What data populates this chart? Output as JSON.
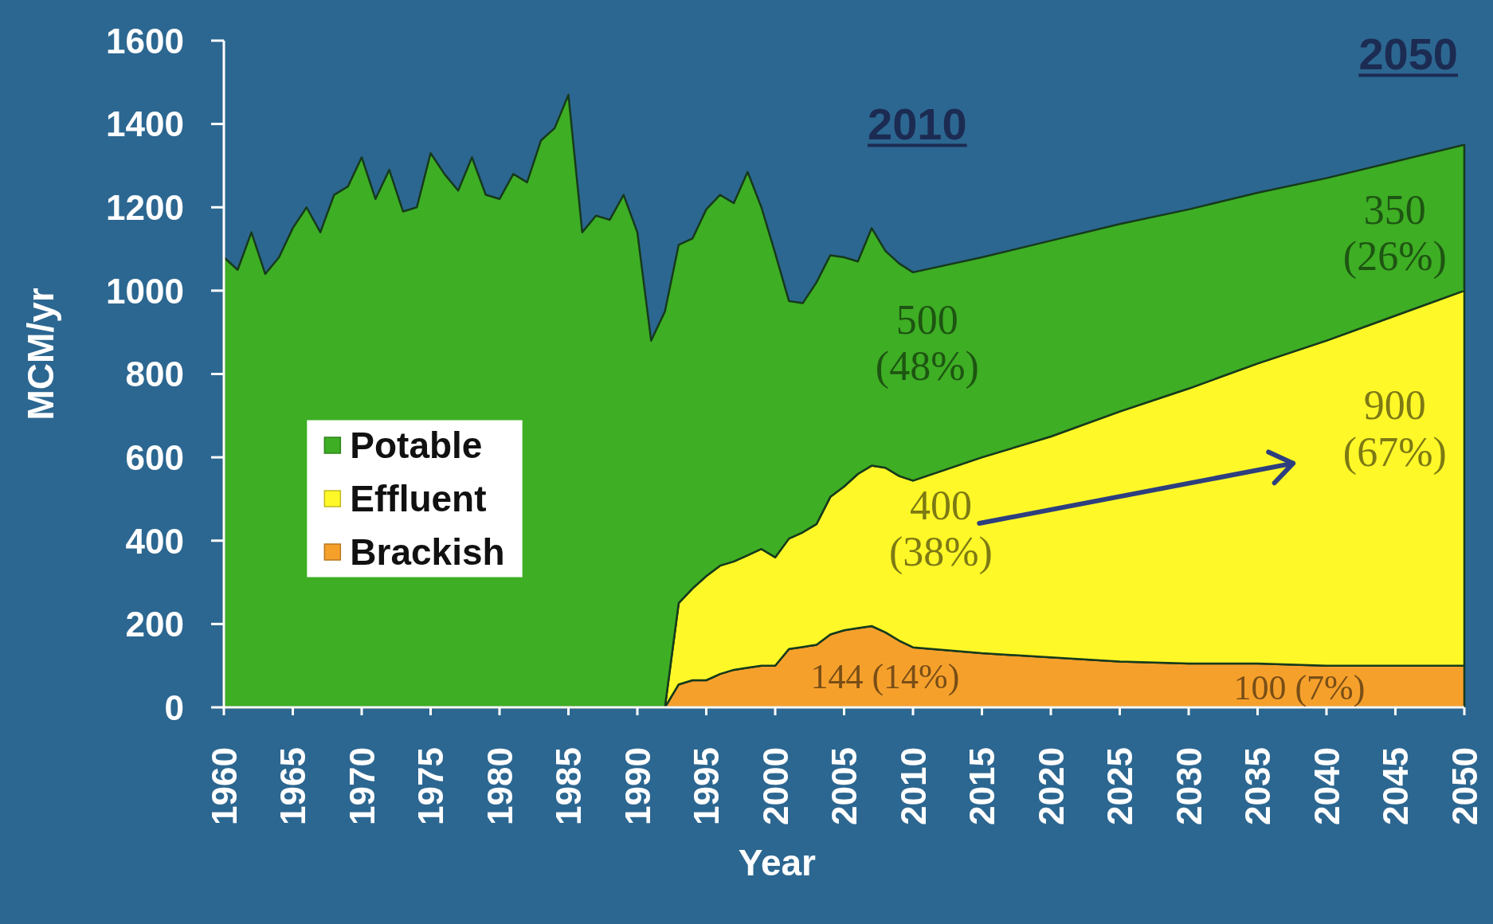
{
  "chart_data": {
    "type": "area",
    "stacked": true,
    "xlabel": "Year",
    "ylabel": "MCM/yr",
    "xlim": [
      1960,
      2050
    ],
    "xticks": [
      1960,
      1965,
      1970,
      1975,
      1980,
      1985,
      1990,
      1995,
      2000,
      2005,
      2010,
      2015,
      2020,
      2025,
      2030,
      2035,
      2040,
      2045,
      2050
    ],
    "ylim": [
      0,
      1600
    ],
    "yticks": [
      0,
      200,
      400,
      600,
      800,
      1000,
      1200,
      1400,
      1600
    ],
    "legend": "left",
    "x": [
      1960,
      1961,
      1962,
      1963,
      1964,
      1965,
      1966,
      1967,
      1968,
      1969,
      1970,
      1971,
      1972,
      1973,
      1974,
      1975,
      1976,
      1977,
      1978,
      1979,
      1980,
      1981,
      1982,
      1983,
      1984,
      1985,
      1986,
      1987,
      1988,
      1989,
      1990,
      1991,
      1992,
      1993,
      1994,
      1995,
      1996,
      1997,
      1998,
      1999,
      2000,
      2001,
      2002,
      2003,
      2004,
      2005,
      2006,
      2007,
      2008,
      2009,
      2010,
      2015,
      2020,
      2025,
      2030,
      2035,
      2040,
      2045,
      2050
    ],
    "series": [
      {
        "name": "Brackish",
        "color": "#f6a02c",
        "values": [
          0,
          0,
          0,
          0,
          0,
          0,
          0,
          0,
          0,
          0,
          0,
          0,
          0,
          0,
          0,
          0,
          0,
          0,
          0,
          0,
          0,
          0,
          0,
          0,
          0,
          0,
          0,
          0,
          0,
          0,
          0,
          0,
          0,
          55,
          65,
          65,
          80,
          90,
          95,
          100,
          100,
          140,
          145,
          150,
          175,
          185,
          190,
          195,
          180,
          160,
          144,
          130,
          120,
          110,
          105,
          105,
          100,
          100,
          100
        ]
      },
      {
        "name": "Effluent",
        "color": "#fff828",
        "values": [
          0,
          0,
          0,
          0,
          0,
          0,
          0,
          0,
          0,
          0,
          0,
          0,
          0,
          0,
          0,
          0,
          0,
          0,
          0,
          0,
          0,
          0,
          0,
          0,
          0,
          0,
          0,
          0,
          0,
          0,
          0,
          0,
          0,
          195,
          220,
          250,
          260,
          260,
          270,
          280,
          260,
          265,
          275,
          290,
          330,
          345,
          370,
          385,
          395,
          395,
          400,
          470,
          530,
          600,
          660,
          720,
          780,
          840,
          900
        ]
      },
      {
        "name": "Potable",
        "color": "#3eae24",
        "values": [
          1080,
          1050,
          1140,
          1040,
          1080,
          1150,
          1200,
          1140,
          1230,
          1250,
          1320,
          1220,
          1290,
          1190,
          1200,
          1330,
          1280,
          1240,
          1320,
          1230,
          1220,
          1280,
          1260,
          1360,
          1390,
          1470,
          1140,
          1180,
          1170,
          1230,
          1140,
          880,
          950,
          860,
          840,
          880,
          890,
          860,
          920,
          820,
          730,
          570,
          550,
          580,
          580,
          550,
          510,
          570,
          520,
          510,
          500,
          480,
          470,
          450,
          430,
          410,
          390,
          370,
          350
        ]
      }
    ],
    "annotations": [
      "2010",
      "2050",
      "500\n(48%)",
      "400\n(38%)",
      "144 (14%)",
      "350\n(26%)",
      "900\n(67%)",
      "100 (7%)"
    ]
  }
}
